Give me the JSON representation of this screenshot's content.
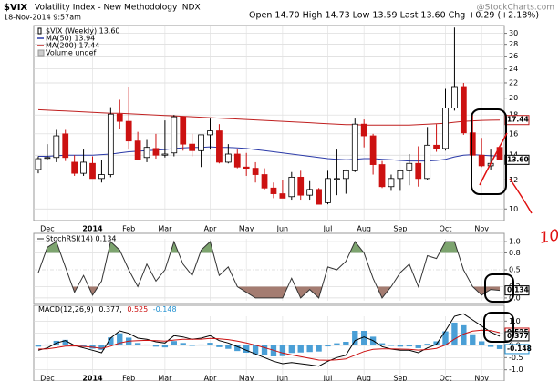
{
  "chart_data": [
    {
      "type": "candlestick",
      "symbol": "$VIX",
      "title": "Volatility Index - New Methodology INDX",
      "date": "18-Nov-2014 9:57am",
      "quote": "Open 14.70 High 14.73 Low 13.59 Last 13.60 Chg +0.29 (+2.18%)",
      "source": "@StockCharts.com",
      "annotation": "10",
      "categories": [
        null,
        "Dec",
        null,
        null,
        null,
        null,
        "2014",
        null,
        null,
        null,
        "Feb",
        null,
        null,
        null,
        "Mar",
        null,
        null,
        null,
        null,
        "Apr",
        null,
        null,
        null,
        "May",
        null,
        null,
        null,
        "Jun",
        null,
        null,
        null,
        null,
        "Jul",
        null,
        null,
        null,
        "Aug",
        null,
        null,
        null,
        "Sep",
        null,
        null,
        null,
        null,
        "Oct",
        null,
        null,
        null,
        "Nov",
        null,
        null
      ],
      "ohlc": {
        "name": "$VIX (Weekly) 13.60",
        "up_color": "#000000",
        "down_color": "#cc1111",
        "open": [
          12.8,
          13.8,
          13.8,
          16.0,
          13.4,
          12.5,
          13.3,
          12.1,
          12.4,
          18.1,
          17.3,
          15.3,
          13.8,
          14.6,
          14.0,
          14.2,
          17.8,
          15.0,
          14.4,
          15.9,
          16.3,
          13.4,
          14.1,
          13.0,
          12.9,
          12.4,
          11.4,
          11.0,
          10.8,
          12.2,
          10.9,
          11.3,
          10.4,
          12.1,
          12.1,
          12.7,
          17.0,
          15.8,
          13.2,
          11.5,
          12.1,
          12.7,
          13.3,
          12.1,
          14.9,
          14.6,
          18.8,
          21.5,
          16.1,
          14.0,
          13.1,
          14.7
        ],
        "high": [
          13.9,
          15.0,
          16.4,
          16.4,
          14.0,
          14.5,
          13.9,
          13.6,
          18.9,
          19.8,
          21.5,
          16.2,
          15.4,
          16.0,
          17.4,
          18.0,
          17.8,
          16.0,
          15.9,
          17.6,
          17.0,
          15.0,
          14.5,
          14.2,
          13.4,
          12.9,
          11.8,
          12.0,
          12.6,
          12.7,
          11.9,
          11.4,
          12.7,
          14.5,
          12.8,
          17.6,
          17.5,
          16.0,
          13.5,
          12.4,
          12.5,
          14.1,
          14.8,
          16.7,
          17.0,
          21.2,
          31.1,
          22.0,
          18.0,
          15.6,
          14.5,
          14.73
        ],
        "low": [
          12.5,
          13.6,
          13.4,
          13.5,
          12.3,
          12.3,
          12.1,
          11.8,
          12.2,
          16.5,
          14.5,
          13.6,
          13.4,
          13.7,
          13.8,
          13.9,
          14.4,
          13.9,
          13.0,
          14.5,
          13.3,
          13.3,
          12.9,
          12.3,
          11.8,
          11.3,
          10.7,
          10.7,
          10.6,
          10.6,
          10.6,
          10.3,
          10.3,
          10.9,
          11.0,
          12.6,
          14.7,
          12.4,
          11.4,
          11.2,
          11.2,
          11.6,
          11.5,
          12.0,
          14.3,
          14.4,
          18.5,
          15.9,
          14.0,
          13.0,
          12.8,
          13.59
        ],
        "close": [
          13.7,
          13.8,
          15.8,
          13.8,
          12.5,
          13.4,
          12.1,
          12.4,
          18.1,
          17.3,
          15.3,
          13.6,
          14.7,
          14.0,
          14.1,
          17.8,
          15.0,
          14.4,
          15.9,
          16.3,
          13.4,
          14.1,
          13.0,
          12.9,
          12.4,
          11.4,
          11.0,
          10.7,
          12.2,
          10.9,
          11.3,
          10.3,
          12.1,
          12.1,
          12.7,
          17.0,
          15.8,
          13.2,
          11.5,
          12.1,
          12.7,
          13.3,
          12.1,
          14.9,
          14.6,
          18.8,
          21.5,
          16.1,
          14.0,
          13.1,
          13.3,
          13.6
        ]
      },
      "series": [
        {
          "name": "MA(50) 13.94",
          "color": "#2b3aa8",
          "values": [
            13.9,
            13.9,
            13.95,
            14.0,
            14.0,
            14.0,
            14.0,
            14.05,
            14.1,
            14.2,
            14.3,
            14.35,
            14.4,
            14.45,
            14.5,
            14.6,
            14.65,
            14.7,
            14.7,
            14.75,
            14.7,
            14.7,
            14.65,
            14.6,
            14.5,
            14.4,
            14.3,
            14.2,
            14.1,
            14.0,
            13.9,
            13.8,
            13.7,
            13.65,
            13.6,
            13.65,
            13.7,
            13.7,
            13.65,
            13.6,
            13.55,
            13.5,
            13.5,
            13.5,
            13.55,
            13.65,
            13.85,
            14.0,
            14.05,
            14.0,
            13.95,
            13.94
          ]
        },
        {
          "name": "MA(200) 17.44",
          "color": "#c02020",
          "values": [
            18.6,
            18.55,
            18.5,
            18.45,
            18.4,
            18.35,
            18.3,
            18.25,
            18.2,
            18.2,
            18.15,
            18.1,
            18.05,
            18.0,
            17.95,
            17.9,
            17.85,
            17.8,
            17.75,
            17.7,
            17.65,
            17.6,
            17.55,
            17.5,
            17.45,
            17.4,
            17.35,
            17.3,
            17.25,
            17.2,
            17.15,
            17.1,
            17.05,
            17.0,
            16.95,
            16.95,
            16.9,
            16.9,
            16.9,
            16.9,
            16.9,
            16.9,
            16.95,
            17.0,
            17.05,
            17.1,
            17.2,
            17.3,
            17.35,
            17.4,
            17.42,
            17.44
          ]
        }
      ],
      "volume_legend": "Volume undef",
      "log_scale": true,
      "grid": true,
      "ylim": [
        9.3,
        31.5
      ],
      "yticks": [
        10,
        12,
        14,
        16,
        18,
        20,
        22,
        24,
        26,
        28,
        30
      ],
      "tags": [
        {
          "value": 17.44,
          "label": "17.44",
          "color": "#c02020"
        },
        {
          "value": 13.6,
          "label": "13.60",
          "color": "#000000"
        }
      ]
    },
    {
      "type": "line",
      "series": [
        {
          "name": "StochRSI(14) 0.134",
          "color": "#333333",
          "values": [
            0.45,
            0.9,
            1,
            0.55,
            0.1,
            0.4,
            0.05,
            0.3,
            1,
            0.85,
            0.5,
            0.2,
            0.6,
            0.3,
            0.5,
            1,
            0.6,
            0.4,
            0.85,
            1,
            0.4,
            0.55,
            0.2,
            0.1,
            0,
            0,
            0,
            0,
            0.35,
            0,
            0.15,
            0,
            0.55,
            0.5,
            0.65,
            1,
            0.8,
            0.35,
            0,
            0.2,
            0.45,
            0.6,
            0.2,
            0.75,
            0.7,
            1,
            1,
            0.5,
            0.2,
            0.05,
            0.15,
            0.134
          ]
        }
      ],
      "fills": [
        {
          "level": 0.8,
          "side": "above",
          "color": "#6f9a5f"
        },
        {
          "level": 0.2,
          "side": "below",
          "color": "#9a6e62"
        }
      ],
      "ylim": [
        -0.05,
        1.05
      ],
      "yticks": [
        {
          "value": 1,
          "label": "1.0"
        },
        0.8,
        0.5,
        0.2,
        {
          "value": 0,
          "label": "0.0"
        }
      ],
      "tags": [
        {
          "value": 0.134,
          "label": "0.134",
          "color": "#000000"
        }
      ]
    },
    {
      "type": "macd",
      "legend": [
        {
          "text": "MACD(12,26,9)",
          "color": "#000000"
        },
        {
          "text": "0.377,",
          "color": "#000000"
        },
        {
          "text": "0.525",
          "color": "#cc1111"
        },
        {
          "text": "-0.148",
          "color": "#1f8fcf"
        }
      ],
      "series": [
        {
          "color": "#000000",
          "values": [
            -0.2,
            -0.1,
            0.1,
            0.2,
            0.0,
            -0.1,
            -0.2,
            -0.3,
            0.3,
            0.6,
            0.5,
            0.3,
            0.25,
            0.15,
            0.1,
            0.4,
            0.35,
            0.25,
            0.3,
            0.4,
            0.2,
            0.1,
            -0.05,
            -0.2,
            -0.35,
            -0.5,
            -0.65,
            -0.75,
            -0.7,
            -0.75,
            -0.8,
            -0.85,
            -0.65,
            -0.5,
            -0.4,
            0.2,
            0.35,
            0.2,
            -0.05,
            -0.15,
            -0.2,
            -0.2,
            -0.3,
            -0.1,
            0.05,
            0.6,
            1.2,
            1.3,
            1.05,
            0.8,
            0.55,
            0.377
          ]
        },
        {
          "color": "#cc1111",
          "values": [
            -0.15,
            -0.14,
            -0.09,
            -0.03,
            -0.02,
            -0.04,
            -0.07,
            -0.12,
            -0.03,
            0.1,
            0.18,
            0.2,
            0.21,
            0.2,
            0.18,
            0.22,
            0.25,
            0.25,
            0.26,
            0.29,
            0.27,
            0.24,
            0.18,
            0.1,
            0.01,
            -0.09,
            -0.2,
            -0.31,
            -0.39,
            -0.46,
            -0.53,
            -0.6,
            -0.61,
            -0.59,
            -0.55,
            -0.4,
            -0.25,
            -0.16,
            -0.14,
            -0.14,
            -0.15,
            -0.16,
            -0.19,
            -0.17,
            -0.12,
            0.02,
            0.26,
            0.47,
            0.59,
            0.63,
            0.61,
            0.525
          ]
        }
      ],
      "histogram": {
        "color": "#4a9fd6",
        "values": [
          -0.05,
          0.04,
          0.19,
          0.23,
          0.02,
          -0.06,
          -0.13,
          -0.18,
          0.33,
          0.5,
          0.32,
          0.1,
          0.04,
          -0.05,
          -0.08,
          0.18,
          0.1,
          0,
          0.04,
          0.11,
          -0.07,
          -0.14,
          -0.23,
          -0.3,
          -0.36,
          -0.41,
          -0.45,
          -0.44,
          -0.31,
          -0.29,
          -0.27,
          -0.25,
          -0.04,
          0.09,
          0.15,
          0.6,
          0.6,
          0.36,
          0.09,
          -0.01,
          -0.05,
          -0.04,
          -0.11,
          0.07,
          0.17,
          0.58,
          0.94,
          0.83,
          0.46,
          0.17,
          -0.06,
          -0.148
        ]
      },
      "ylim": [
        -1.2,
        1.2
      ],
      "yticks": [
        {
          "value": 1,
          "label": "1.0"
        },
        {
          "value": 0.5,
          "label": "0.5"
        },
        {
          "value": 0,
          "label": "0.0"
        },
        {
          "value": -0.5,
          "label": "-0.5"
        },
        {
          "value": -1,
          "label": "-1.0"
        }
      ],
      "tags": [
        {
          "value": 0.525,
          "label": "0.525",
          "color": "#cc1111"
        },
        {
          "value": 0.377,
          "label": "0.377",
          "color": "#000000"
        },
        {
          "value": -0.148,
          "label": "-0.148",
          "color": "#1f8fcf"
        }
      ]
    }
  ]
}
